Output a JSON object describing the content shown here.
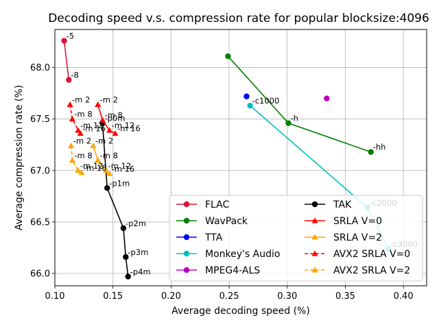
{
  "chart_data": {
    "type": "line",
    "title": "Decoding speed v.s. compression rate for popular blocksize:4096",
    "xlabel": "Average decoding speed (%)",
    "ylabel": "Average compression rate (%)",
    "xlim": [
      0.1,
      0.42
    ],
    "ylim": [
      65.88,
      68.37
    ],
    "xticks": [
      0.1,
      0.15,
      0.2,
      0.25,
      0.3,
      0.35,
      0.4
    ],
    "xtick_labels": [
      "0.10",
      "0.15",
      "0.20",
      "0.25",
      "0.30",
      "0.35",
      "0.40"
    ],
    "yticks": [
      66.0,
      66.5,
      67.0,
      67.5,
      68.0
    ],
    "ytick_labels": [
      "66.0",
      "66.5",
      "67.0",
      "67.5",
      "68.0"
    ],
    "grid": true,
    "legend_position": "lower-right",
    "series": [
      {
        "name": "FLAC",
        "color": "#dc143c",
        "marker": "circle",
        "dash": false,
        "x": [
          0.108,
          0.112
        ],
        "y": [
          68.26,
          67.88
        ],
        "labels": [
          "-5",
          "-8"
        ]
      },
      {
        "name": "WavPack",
        "color": "#008000",
        "marker": "circle",
        "dash": false,
        "x": [
          0.249,
          0.301,
          0.372
        ],
        "y": [
          68.11,
          67.46,
          67.18
        ],
        "labels": [
          "",
          "-h",
          "-hh"
        ]
      },
      {
        "name": "TTA",
        "color": "#0000ff",
        "marker": "circle",
        "dash": false,
        "x": [
          0.265
        ],
        "y": [
          67.72
        ],
        "labels": [
          ""
        ]
      },
      {
        "name": "Monkey's Audio",
        "color": "#00bfbf",
        "marker": "circle",
        "dash": false,
        "x": [
          0.268,
          0.369,
          0.387
        ],
        "y": [
          67.63,
          66.64,
          66.24
        ],
        "labels": [
          "-c1000",
          "-c2000",
          "-c3000"
        ]
      },
      {
        "name": "MPEG4-ALS",
        "color": "#bf00bf",
        "marker": "circle",
        "dash": false,
        "x": [
          0.334
        ],
        "y": [
          67.7
        ],
        "labels": [
          ""
        ]
      },
      {
        "name": "TAK",
        "color": "#000000",
        "marker": "circle",
        "dash": false,
        "x": [
          0.141,
          0.145,
          0.159,
          0.161,
          0.163
        ],
        "y": [
          67.46,
          66.83,
          66.44,
          66.16,
          65.97
        ],
        "labels": [
          "-p0m",
          "-p1m",
          "-p2m",
          "-p3m",
          "-p4m"
        ]
      },
      {
        "name": "SRLA V=0",
        "color": "#ff0000",
        "marker": "triangle",
        "dash": false,
        "x": [
          0.137,
          0.141,
          0.147,
          0.152
        ],
        "y": [
          67.64,
          67.49,
          67.39,
          67.36
        ],
        "labels": [
          "-m 2",
          "-m 8",
          "-m 12",
          "-m 16"
        ]
      },
      {
        "name": "SRLA V=2",
        "color": "#ffa500",
        "marker": "triangle",
        "dash": false,
        "x": [
          0.133,
          0.137,
          0.144,
          0.147
        ],
        "y": [
          67.24,
          67.1,
          67.0,
          66.97
        ],
        "labels": [
          "-m 2",
          "-m 8",
          "-m 12",
          "-m 16"
        ]
      },
      {
        "name": "AVX2 SRLA V=0",
        "color": "#ff0000",
        "marker": "triangle",
        "dash": true,
        "x": [
          0.113,
          0.115,
          0.12,
          0.122
        ],
        "y": [
          67.64,
          67.5,
          67.39,
          67.36
        ],
        "labels": [
          "-m 2",
          "-m 8",
          "-m 12",
          "-m 16"
        ]
      },
      {
        "name": "AVX2 SRLA V=2",
        "color": "#ffa500",
        "marker": "triangle",
        "dash": true,
        "x": [
          0.114,
          0.115,
          0.12,
          0.123
        ],
        "y": [
          67.24,
          67.1,
          67.0,
          66.98
        ],
        "labels": [
          "-m 2",
          "-m 8",
          "-m 12",
          "-m 16"
        ]
      }
    ]
  }
}
